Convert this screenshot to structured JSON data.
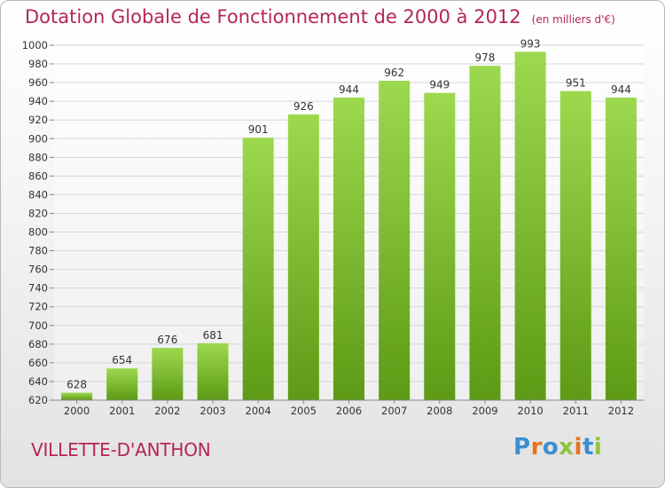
{
  "chart_data": {
    "type": "bar",
    "title": "Dotation Globale de Fonctionnement de 2000 à 2012",
    "unit": "(en milliers d'€)",
    "categories": [
      "2000",
      "2001",
      "2002",
      "2003",
      "2004",
      "2005",
      "2006",
      "2007",
      "2008",
      "2009",
      "2010",
      "2011",
      "2012"
    ],
    "values": [
      628,
      654,
      676,
      681,
      901,
      926,
      944,
      962,
      949,
      978,
      993,
      951,
      944
    ],
    "ylim": [
      620,
      1000
    ],
    "yticks": [
      620,
      640,
      660,
      680,
      700,
      720,
      740,
      760,
      780,
      800,
      820,
      840,
      860,
      880,
      900,
      920,
      940,
      960,
      980,
      1000
    ],
    "grid": true,
    "colors": {
      "bar_light": "#9dd94f",
      "bar_dark": "#5d9a15",
      "text": "#b4255a"
    }
  },
  "commune": "VILLETTE-D'ANTHON",
  "logo": {
    "text": "Proxiti",
    "colors": [
      "#3a8fd0",
      "#e8731c",
      "#3a8fd0",
      "#8cc43c",
      "#e8731c",
      "#3a8fd0",
      "#8cc43c"
    ]
  }
}
